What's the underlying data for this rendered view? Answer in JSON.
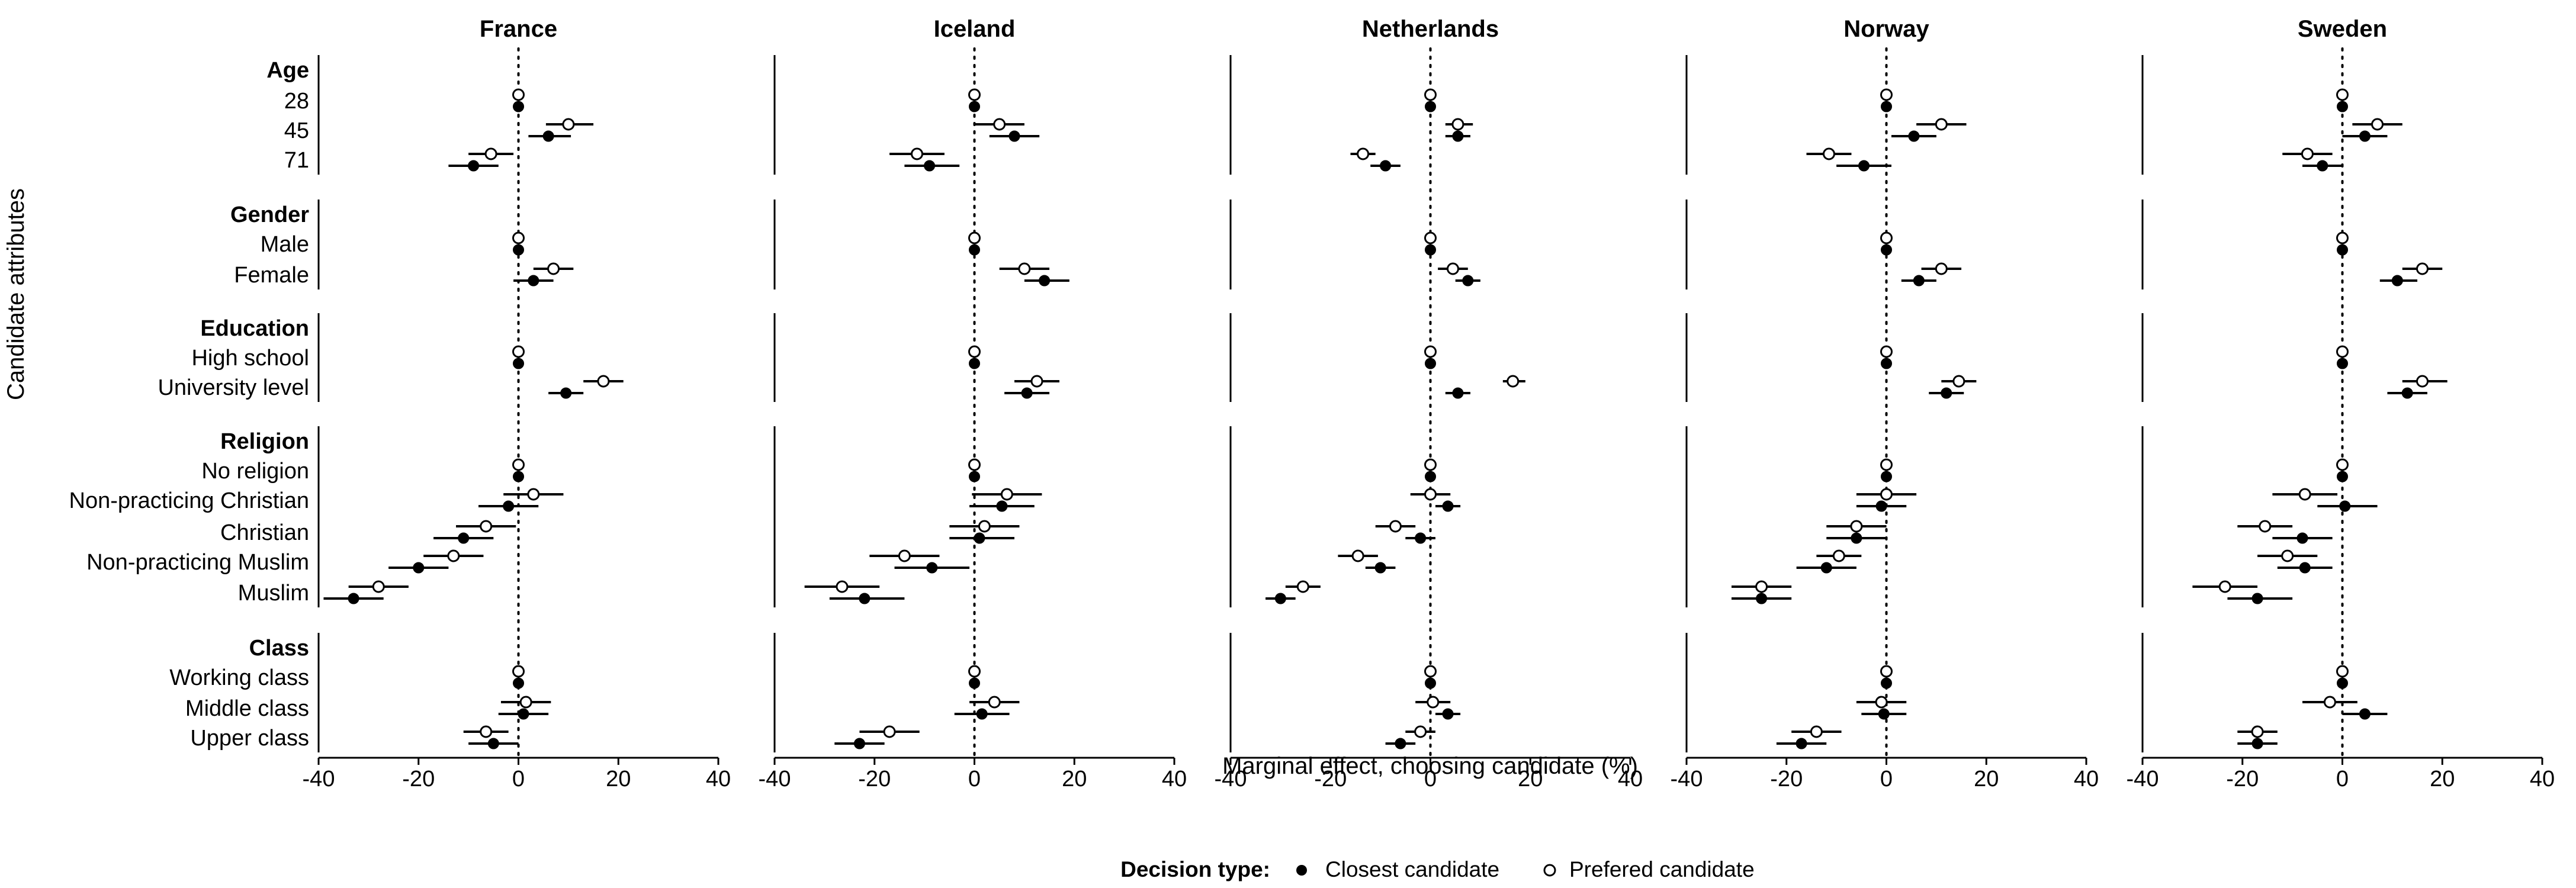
{
  "chart_data": {
    "type": "scatter",
    "subtype": "coefficient-plot",
    "xlabel": "Marginal effect, choosing candidate (%)",
    "ylabel": "Candidate attributes",
    "xlim": [
      -40,
      40
    ],
    "xticks": [
      -40,
      -20,
      0,
      20,
      40
    ],
    "grid": false,
    "reference_line": {
      "x": 0,
      "style": "dotted"
    },
    "legend": {
      "title": "Decision type:",
      "position": "bottom",
      "entries": [
        {
          "label": "Closest candidate",
          "marker": "filled-circle"
        },
        {
          "label": "Prefered candidate",
          "marker": "open-circle"
        }
      ]
    },
    "rows": [
      {
        "label": "Age",
        "header": true
      },
      {
        "label": "28"
      },
      {
        "label": "45"
      },
      {
        "label": "71"
      },
      {
        "label": "Gender",
        "header": true
      },
      {
        "label": "Male"
      },
      {
        "label": "Female"
      },
      {
        "label": "Education",
        "header": true
      },
      {
        "label": "High school"
      },
      {
        "label": "University level"
      },
      {
        "label": "Religion",
        "header": true
      },
      {
        "label": "No religion"
      },
      {
        "label": "Non-practicing Christian"
      },
      {
        "label": "Christian"
      },
      {
        "label": "Non-practicing Muslim"
      },
      {
        "label": "Muslim"
      },
      {
        "label": "Class",
        "header": true
      },
      {
        "label": "Working class"
      },
      {
        "label": "Middle class"
      },
      {
        "label": "Upper class"
      }
    ],
    "panels": [
      {
        "name": "France",
        "series": [
          {
            "name": "Closest candidate",
            "marker": "filled",
            "values": [
              null,
              0,
              6,
              -9,
              null,
              0,
              3,
              null,
              0,
              9.5,
              null,
              0,
              -2,
              -11,
              -20,
              -33,
              null,
              0,
              1,
              -5
            ],
            "ci": [
              null,
              [
                0,
                0
              ],
              [
                2,
                10.5
              ],
              [
                -14,
                -4
              ],
              null,
              [
                0,
                0
              ],
              [
                -1,
                7
              ],
              null,
              [
                0,
                0
              ],
              [
                6,
                13
              ],
              null,
              [
                0,
                0
              ],
              [
                -8,
                4
              ],
              [
                -17,
                -5
              ],
              [
                -26,
                -14
              ],
              [
                -39,
                -27
              ],
              null,
              [
                0,
                0
              ],
              [
                -4,
                6
              ],
              [
                -10,
                0
              ]
            ]
          },
          {
            "name": "Prefered candidate",
            "marker": "open",
            "values": [
              null,
              0,
              10,
              -5.5,
              null,
              0,
              7,
              null,
              0,
              17,
              null,
              0,
              3,
              -6.5,
              -13,
              -28,
              null,
              0,
              1.5,
              -6.5
            ],
            "ci": [
              null,
              [
                0,
                0
              ],
              [
                5.5,
                15
              ],
              [
                -10,
                -1
              ],
              null,
              [
                0,
                0
              ],
              [
                3,
                11
              ],
              null,
              [
                0,
                0
              ],
              [
                13,
                21
              ],
              null,
              [
                0,
                0
              ],
              [
                -3,
                9
              ],
              [
                -12.5,
                -0.5
              ],
              [
                -19,
                -7
              ],
              [
                -34,
                -22
              ],
              null,
              [
                0,
                0
              ],
              [
                -3.5,
                6.5
              ],
              [
                -11,
                -2
              ]
            ]
          }
        ]
      },
      {
        "name": "Iceland",
        "series": [
          {
            "name": "Closest candidate",
            "marker": "filled",
            "values": [
              null,
              0,
              8,
              -9,
              null,
              0,
              14,
              null,
              0,
              10.5,
              null,
              0,
              5.5,
              1,
              -8.5,
              -22,
              null,
              0,
              1.5,
              -23
            ],
            "ci": [
              null,
              [
                0,
                0
              ],
              [
                3,
                13
              ],
              [
                -14,
                -3
              ],
              null,
              [
                0,
                0
              ],
              [
                10,
                19
              ],
              null,
              [
                0,
                0
              ],
              [
                6,
                15
              ],
              null,
              [
                0,
                0
              ],
              [
                -1,
                12
              ],
              [
                -5,
                8
              ],
              [
                -16,
                -1
              ],
              [
                -29,
                -14
              ],
              null,
              [
                0,
                0
              ],
              [
                -4,
                7
              ],
              [
                -28,
                -18
              ]
            ]
          },
          {
            "name": "Prefered candidate",
            "marker": "open",
            "values": [
              null,
              0,
              5,
              -11.5,
              null,
              0,
              10,
              null,
              0,
              12.5,
              null,
              0,
              6.5,
              2,
              -14,
              -26.5,
              null,
              0,
              4,
              -17
            ],
            "ci": [
              null,
              [
                0,
                0
              ],
              [
                0,
                10
              ],
              [
                -17,
                -6
              ],
              null,
              [
                0,
                0
              ],
              [
                5,
                15
              ],
              null,
              [
                0,
                0
              ],
              [
                8,
                17
              ],
              null,
              [
                0,
                0
              ],
              [
                -0.5,
                13.5
              ],
              [
                -5,
                9
              ],
              [
                -21,
                -7
              ],
              [
                -34,
                -19
              ],
              null,
              [
                0,
                0
              ],
              [
                -1,
                9
              ],
              [
                -23,
                -11
              ]
            ]
          }
        ]
      },
      {
        "name": "Netherlands",
        "series": [
          {
            "name": "Closest candidate",
            "marker": "filled",
            "values": [
              null,
              0,
              5.5,
              -9,
              null,
              0,
              7.5,
              null,
              0,
              5.5,
              null,
              0,
              3.5,
              -2,
              -10,
              -30,
              null,
              0,
              3.5,
              -6
            ],
            "ci": [
              null,
              [
                0,
                0
              ],
              [
                3,
                8
              ],
              [
                -12,
                -6
              ],
              null,
              [
                0,
                0
              ],
              [
                5,
                10
              ],
              null,
              [
                0,
                0
              ],
              [
                3,
                8
              ],
              null,
              [
                0,
                0
              ],
              [
                1,
                6
              ],
              [
                -5,
                1
              ],
              [
                -13,
                -7
              ],
              [
                -33,
                -27
              ],
              null,
              [
                0,
                0
              ],
              [
                1,
                6
              ],
              [
                -9,
                -3
              ]
            ]
          },
          {
            "name": "Prefered candidate",
            "marker": "open",
            "values": [
              null,
              0,
              5.5,
              -13.5,
              null,
              0,
              4.5,
              null,
              0,
              16.5,
              null,
              0,
              0,
              -7,
              -14.5,
              -25.5,
              null,
              0,
              0.5,
              -2
            ],
            "ci": [
              null,
              [
                0,
                0
              ],
              [
                3,
                8.5
              ],
              [
                -16,
                -11
              ],
              null,
              [
                0,
                0
              ],
              [
                1.5,
                7.5
              ],
              null,
              [
                0,
                0
              ],
              [
                14.5,
                19
              ],
              null,
              [
                0,
                0
              ],
              [
                -4,
                4
              ],
              [
                -11,
                -3
              ],
              [
                -18.5,
                -10.5
              ],
              [
                -29,
                -22
              ],
              null,
              [
                0,
                0
              ],
              [
                -3,
                4
              ],
              [
                -5,
                1
              ]
            ]
          }
        ]
      },
      {
        "name": "Norway",
        "series": [
          {
            "name": "Closest candidate",
            "marker": "filled",
            "values": [
              null,
              0,
              5.5,
              -4.5,
              null,
              0,
              6.5,
              null,
              0,
              12,
              null,
              0,
              -1,
              -6,
              -12,
              -25,
              null,
              0,
              -0.5,
              -17
            ],
            "ci": [
              null,
              [
                0,
                0
              ],
              [
                1,
                10
              ],
              [
                -10,
                1
              ],
              null,
              [
                0,
                0
              ],
              [
                3,
                10
              ],
              null,
              [
                0,
                0
              ],
              [
                8.5,
                15.5
              ],
              null,
              [
                0,
                0
              ],
              [
                -6,
                4
              ],
              [
                -12,
                0
              ],
              [
                -18,
                -6
              ],
              [
                -31,
                -19
              ],
              null,
              [
                0,
                0
              ],
              [
                -5,
                4
              ],
              [
                -22,
                -12
              ]
            ]
          },
          {
            "name": "Prefered candidate",
            "marker": "open",
            "values": [
              null,
              0,
              11,
              -11.5,
              null,
              0,
              11,
              null,
              0,
              14.5,
              null,
              0,
              0,
              -6,
              -9.5,
              -25,
              null,
              0,
              -1,
              -14
            ],
            "ci": [
              null,
              [
                0,
                0
              ],
              [
                6,
                16
              ],
              [
                -16,
                -7
              ],
              null,
              [
                0,
                0
              ],
              [
                7,
                15
              ],
              null,
              [
                0,
                0
              ],
              [
                11,
                18
              ],
              null,
              [
                0,
                0
              ],
              [
                -6,
                6
              ],
              [
                -12,
                0
              ],
              [
                -14,
                -5
              ],
              [
                -31,
                -19
              ],
              null,
              [
                0,
                0
              ],
              [
                -6,
                4
              ],
              [
                -19,
                -9
              ]
            ]
          }
        ]
      },
      {
        "name": "Sweden",
        "series": [
          {
            "name": "Closest candidate",
            "marker": "filled",
            "values": [
              null,
              0,
              4.5,
              -4,
              null,
              0,
              11,
              null,
              0,
              13,
              null,
              0,
              0.5,
              -8,
              -7.5,
              -17,
              null,
              0,
              4.5,
              -17
            ],
            "ci": [
              null,
              [
                0,
                0
              ],
              [
                0,
                9
              ],
              [
                -8,
                0
              ],
              null,
              [
                0,
                0
              ],
              [
                7.5,
                15
              ],
              null,
              [
                0,
                0
              ],
              [
                9,
                17
              ],
              null,
              [
                0,
                0
              ],
              [
                -5,
                7
              ],
              [
                -14,
                -2
              ],
              [
                -13,
                -2
              ],
              [
                -23,
                -10
              ],
              null,
              [
                0,
                0
              ],
              [
                0,
                9
              ],
              [
                -21,
                -13
              ]
            ]
          },
          {
            "name": "Prefered candidate",
            "marker": "open",
            "values": [
              null,
              0,
              7,
              -7,
              null,
              0,
              16,
              null,
              0,
              16,
              null,
              0,
              -7.5,
              -15.5,
              -11,
              -23.5,
              null,
              0,
              -2.5,
              -17
            ],
            "ci": [
              null,
              [
                0,
                0
              ],
              [
                2,
                12
              ],
              [
                -12,
                -2
              ],
              null,
              [
                0,
                0
              ],
              [
                12,
                20
              ],
              null,
              [
                0,
                0
              ],
              [
                12,
                21
              ],
              null,
              [
                0,
                0
              ],
              [
                -14,
                -1
              ],
              [
                -21,
                -10
              ],
              [
                -17,
                -5
              ],
              [
                -30,
                -17
              ],
              null,
              [
                0,
                0
              ],
              [
                -8,
                3
              ],
              [
                -21,
                -13
              ]
            ]
          }
        ]
      }
    ]
  }
}
